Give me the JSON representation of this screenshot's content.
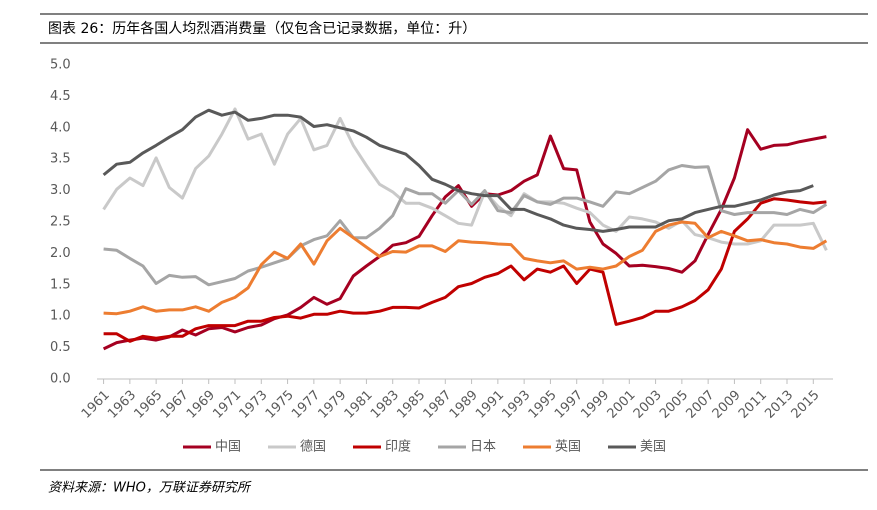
{
  "chart_data": {
    "type": "line",
    "title": "图表 26：历年各国人均烈酒消费量（仅包含已记录数据，单位：升）",
    "source": "资料来源：WHO，万联证券研究所",
    "x": [
      1961,
      1962,
      1963,
      1964,
      1965,
      1966,
      1967,
      1968,
      1969,
      1970,
      1971,
      1972,
      1973,
      1974,
      1975,
      1976,
      1977,
      1978,
      1979,
      1980,
      1981,
      1982,
      1983,
      1984,
      1985,
      1986,
      1987,
      1988,
      1989,
      1990,
      1991,
      1992,
      1993,
      1994,
      1995,
      1996,
      1997,
      1998,
      1999,
      2000,
      2001,
      2002,
      2003,
      2004,
      2005,
      2006,
      2007,
      2008,
      2009,
      2010,
      2011,
      2012,
      2013,
      2014,
      2015,
      2016
    ],
    "xlim": [
      1960.5,
      2016.5
    ],
    "xticks": [
      1961,
      1963,
      1965,
      1967,
      1969,
      1971,
      1973,
      1975,
      1977,
      1979,
      1981,
      1983,
      1985,
      1987,
      1989,
      1991,
      1993,
      1995,
      1997,
      1999,
      2001,
      2003,
      2005,
      2007,
      2009,
      2011,
      2013,
      2015
    ],
    "ylim": [
      0,
      5
    ],
    "yticks": [
      {
        "value": 0,
        "label": "0.0"
      },
      {
        "value": 0.5,
        "label": "0.5"
      },
      {
        "value": 1,
        "label": "1.0"
      },
      {
        "value": 1.5,
        "label": "1.5"
      },
      {
        "value": 2,
        "label": "2.0"
      },
      {
        "value": 2.5,
        "label": "2.5"
      },
      {
        "value": 3,
        "label": "3.0"
      },
      {
        "value": 3.5,
        "label": "3.5"
      },
      {
        "value": 4,
        "label": "4.0"
      },
      {
        "value": 4.5,
        "label": "4.5"
      },
      {
        "value": 5,
        "label": "5.0"
      }
    ],
    "legend": "bottom",
    "series": [
      {
        "name": "中国",
        "color": "#a50021",
        "values": [
          0.48,
          0.58,
          0.62,
          0.65,
          0.62,
          0.67,
          0.78,
          0.7,
          0.8,
          0.82,
          0.75,
          0.82,
          0.86,
          0.96,
          1.02,
          1.14,
          1.3,
          1.19,
          1.28,
          1.64,
          1.8,
          1.95,
          2.13,
          2.17,
          2.27,
          2.6,
          2.9,
          3.08,
          2.75,
          2.95,
          2.93,
          3.0,
          3.15,
          3.25,
          3.87,
          3.35,
          3.33,
          2.5,
          2.15,
          2.0,
          1.8,
          1.81,
          1.79,
          1.76,
          1.7,
          1.88,
          2.3,
          2.7,
          3.2,
          3.97,
          3.66,
          3.72,
          3.73,
          3.78,
          3.82,
          3.86
        ]
      },
      {
        "name": "德国",
        "color": "#c9c9c9",
        "values": [
          2.7,
          3.02,
          3.2,
          3.08,
          3.52,
          3.05,
          2.88,
          3.35,
          3.55,
          3.9,
          4.3,
          3.82,
          3.9,
          3.42,
          3.9,
          4.15,
          3.65,
          3.72,
          4.15,
          3.72,
          3.4,
          3.1,
          2.98,
          2.8,
          2.8,
          2.72,
          2.6,
          2.48,
          2.45,
          2.98,
          2.75,
          2.6,
          2.95,
          2.82,
          2.82,
          2.8,
          2.72,
          2.65,
          2.45,
          2.35,
          2.58,
          2.55,
          2.5,
          2.4,
          2.52,
          2.3,
          2.25,
          2.18,
          2.15,
          2.15,
          2.2,
          2.45,
          2.45,
          2.45,
          2.48,
          2.05
        ]
      },
      {
        "name": "印度",
        "color": "#c00000",
        "values": [
          0.72,
          0.72,
          0.6,
          0.68,
          0.65,
          0.68,
          0.68,
          0.8,
          0.85,
          0.85,
          0.85,
          0.92,
          0.92,
          0.98,
          1.0,
          0.97,
          1.03,
          1.03,
          1.08,
          1.05,
          1.05,
          1.08,
          1.14,
          1.14,
          1.13,
          1.22,
          1.3,
          1.47,
          1.52,
          1.62,
          1.68,
          1.8,
          1.58,
          1.75,
          1.7,
          1.8,
          1.52,
          1.75,
          1.7,
          0.87,
          0.92,
          0.98,
          1.08,
          1.08,
          1.15,
          1.25,
          1.42,
          1.75,
          2.35,
          2.55,
          2.8,
          2.87,
          2.85,
          2.82,
          2.8,
          2.82
        ]
      },
      {
        "name": "日本",
        "color": "#a5a5a5",
        "values": [
          2.07,
          2.05,
          1.92,
          1.8,
          1.52,
          1.65,
          1.62,
          1.63,
          1.5,
          1.55,
          1.6,
          1.72,
          1.78,
          1.85,
          1.92,
          2.12,
          2.22,
          2.28,
          2.52,
          2.25,
          2.25,
          2.4,
          2.6,
          3.03,
          2.95,
          2.95,
          2.8,
          3.0,
          2.78,
          3.0,
          2.68,
          2.65,
          2.92,
          2.82,
          2.78,
          2.88,
          2.88,
          2.82,
          2.75,
          2.98,
          2.95,
          3.05,
          3.15,
          3.33,
          3.4,
          3.37,
          3.38,
          2.68,
          2.62,
          2.65,
          2.65,
          2.65,
          2.62,
          2.7,
          2.65,
          2.78
        ]
      },
      {
        "name": "英国",
        "color": "#ed7d31",
        "values": [
          1.05,
          1.04,
          1.08,
          1.15,
          1.08,
          1.1,
          1.1,
          1.15,
          1.08,
          1.22,
          1.3,
          1.45,
          1.82,
          2.02,
          1.92,
          2.15,
          1.83,
          2.2,
          2.4,
          2.25,
          2.1,
          1.95,
          2.03,
          2.02,
          2.12,
          2.12,
          2.03,
          2.2,
          2.18,
          2.17,
          2.15,
          2.14,
          1.92,
          1.88,
          1.85,
          1.88,
          1.75,
          1.78,
          1.75,
          1.8,
          1.95,
          2.05,
          2.35,
          2.45,
          2.5,
          2.48,
          2.25,
          2.35,
          2.28,
          2.2,
          2.22,
          2.17,
          2.15,
          2.1,
          2.08,
          2.2
        ]
      },
      {
        "name": "美国",
        "color": "#595959",
        "values": [
          3.25,
          3.42,
          3.45,
          3.6,
          3.72,
          3.85,
          3.97,
          4.17,
          4.28,
          4.2,
          4.25,
          4.12,
          4.15,
          4.2,
          4.2,
          4.17,
          4.02,
          4.05,
          4.0,
          3.95,
          3.85,
          3.72,
          3.65,
          3.58,
          3.4,
          3.18,
          3.1,
          3.0,
          2.95,
          2.92,
          2.92,
          2.7,
          2.7,
          2.62,
          2.55,
          2.45,
          2.4,
          2.38,
          2.35,
          2.38,
          2.42,
          2.42,
          2.42,
          2.52,
          2.55,
          2.65,
          2.7,
          2.75,
          2.75,
          2.8,
          2.85,
          2.93,
          2.98,
          3.0,
          3.08,
          null
        ]
      }
    ]
  }
}
